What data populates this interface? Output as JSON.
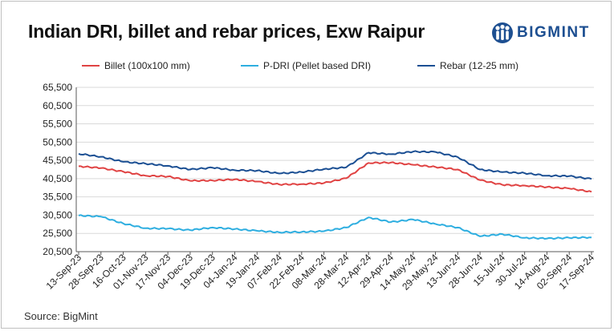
{
  "brand": {
    "name": "BIGMINT",
    "logo_icon": "bigmint-logo-icon",
    "color": "#1d4f91"
  },
  "source": "Source: BigMint",
  "chart_data": {
    "type": "line",
    "title": "Indian DRI, billet and rebar prices, Exw Raipur",
    "xlabel": "",
    "ylabel": "",
    "ylim": [
      20500,
      65500
    ],
    "yticks": [
      20500,
      25500,
      30500,
      35500,
      40500,
      45500,
      50500,
      55500,
      60500,
      65500
    ],
    "ytick_labels": [
      "20,500",
      "25,500",
      "30,500",
      "35,500",
      "40,500",
      "45,500",
      "50,500",
      "55,500",
      "60,500",
      "65,500"
    ],
    "grid": true,
    "legend_position": "top",
    "categories": [
      "13-Sep-23",
      "28-Sep-23",
      "16-Oct-23",
      "01-Nov-23",
      "17-Nov-23",
      "04-Dec-23",
      "19-Dec-23",
      "04-Jan-24",
      "19-Jan-24",
      "07-Feb-24",
      "22-Feb-24",
      "08-Mar-24",
      "28-Mar-24",
      "12-Apr-24",
      "29-Apr-24",
      "14-May-24",
      "29-May-24",
      "13-Jun-24",
      "28-Jun-24",
      "15-Jul-24",
      "30-Jul-24",
      "14-Aug-24",
      "02-Sep-24",
      "17-Sep-24"
    ],
    "series": [
      {
        "name": "Billet (100x100 mm)",
        "color": "#e04343",
        "values": [
          43900,
          43400,
          42400,
          41300,
          41100,
          39900,
          40000,
          40300,
          39700,
          38900,
          39000,
          39300,
          40600,
          44800,
          44900,
          44300,
          43700,
          43000,
          40100,
          38800,
          38600,
          38200,
          37800,
          36900
        ]
      },
      {
        "name": "P-DRI (Pellet based DRI)",
        "color": "#2eaee0",
        "values": [
          30400,
          30100,
          28200,
          26900,
          26800,
          26400,
          27100,
          26700,
          26200,
          25800,
          25900,
          26100,
          27100,
          29900,
          28600,
          29300,
          28100,
          27100,
          24700,
          25300,
          24300,
          24100,
          24300,
          24400
        ]
      },
      {
        "name": "Rebar (12-25 mm)",
        "color": "#1b4f93",
        "values": [
          47300,
          46500,
          45100,
          44600,
          44000,
          43000,
          43500,
          42800,
          42700,
          41900,
          42300,
          43100,
          43600,
          47600,
          47200,
          47900,
          47800,
          46400,
          43000,
          42300,
          42000,
          41300,
          41200,
          40400
        ]
      }
    ]
  }
}
